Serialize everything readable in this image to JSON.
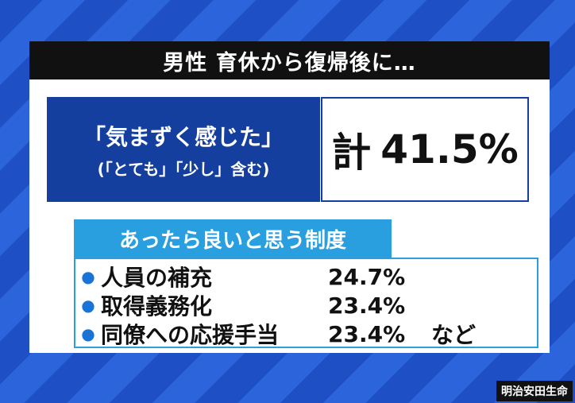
{
  "title": "男性 育休から復帰後に…",
  "feeling": {
    "label": "「気まずく感じた」",
    "sublabel": "(「とても」「少し」含む)",
    "total_prefix": "計",
    "total_value": "41.5%"
  },
  "systems": {
    "heading": "あったら良いと思う制度",
    "items": [
      {
        "label": "人員の補充",
        "value": "24.7%",
        "suffix": ""
      },
      {
        "label": "取得義務化",
        "value": "23.4%",
        "suffix": ""
      },
      {
        "label": "同僚への応援手当",
        "value": "23.4%",
        "suffix": "など"
      }
    ]
  },
  "source": "明治安田生命",
  "colors": {
    "title_bar": "#111111",
    "label_box": "#143f9e",
    "systems_accent": "#2a9fdf",
    "background_stripe_1": "#1f4fc4",
    "background_stripe_2": "#2c64dc"
  }
}
